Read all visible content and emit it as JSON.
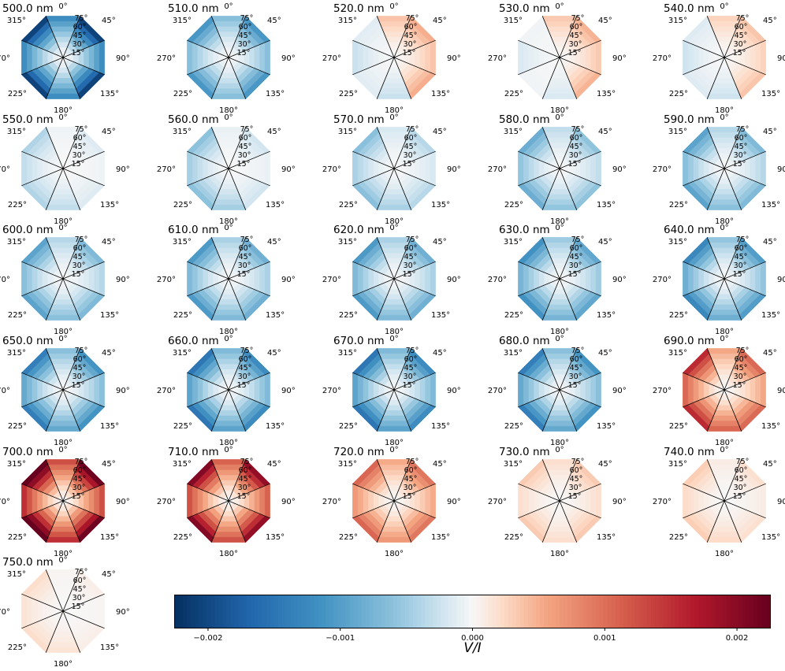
{
  "chart_data": {
    "type": "heatmap",
    "layout": "small-multiples-polar-octagon",
    "grid": "ranges, nm",
    "azimuth_labels": [
      "0°",
      "45°",
      "90°",
      "135°",
      "180°",
      "225°",
      "270°",
      "315°"
    ],
    "zenith_labels": [
      "15°",
      "30°",
      "45°",
      "60°",
      "75°"
    ],
    "zenith_values_deg": [
      15,
      30,
      45,
      60,
      75
    ],
    "colorbar": {
      "label": "V/I",
      "range": [
        -0.00225,
        0.00225
      ],
      "ticks": [
        -0.002,
        -0.001,
        0.0,
        0.001,
        0.002
      ],
      "tick_labels": [
        "−0.002",
        "−0.001",
        "0.000",
        "0.001",
        "0.002"
      ],
      "colormap": "RdBu_r"
    },
    "panels": [
      {
        "title": "500.0 nm",
        "edge": -0.0019,
        "skew": 0.0
      },
      {
        "title": "510.0 nm",
        "edge": -0.001,
        "skew": 0.0
      },
      {
        "title": "520.0 nm",
        "edge": 0.0003,
        "skew": -0.0005
      },
      {
        "title": "530.0 nm",
        "edge": 0.0003,
        "skew": -0.0004
      },
      {
        "title": "540.0 nm",
        "edge": 0.0002,
        "skew": -0.0004
      },
      {
        "title": "550.0 nm",
        "edge": -0.0002,
        "skew": -0.0002
      },
      {
        "title": "560.0 nm",
        "edge": -0.0003,
        "skew": -0.0003
      },
      {
        "title": "570.0 nm",
        "edge": -0.0004,
        "skew": -0.0002
      },
      {
        "title": "580.0 nm",
        "edge": -0.0006,
        "skew": -0.0002
      },
      {
        "title": "590.0 nm",
        "edge": -0.0007,
        "skew": -0.0002
      },
      {
        "title": "600.0 nm",
        "edge": -0.0007,
        "skew": -0.0002
      },
      {
        "title": "610.0 nm",
        "edge": -0.0008,
        "skew": -0.0002
      },
      {
        "title": "620.0 nm",
        "edge": -0.0008,
        "skew": -0.0002
      },
      {
        "title": "630.0 nm",
        "edge": -0.0009,
        "skew": -0.0002
      },
      {
        "title": "640.0 nm",
        "edge": -0.001,
        "skew": -0.0002
      },
      {
        "title": "650.0 nm",
        "edge": -0.0011,
        "skew": -0.0002
      },
      {
        "title": "660.0 nm",
        "edge": -0.0012,
        "skew": -0.0002
      },
      {
        "title": "670.0 nm",
        "edge": -0.0012,
        "skew": -0.0002
      },
      {
        "title": "680.0 nm",
        "edge": -0.0011,
        "skew": -0.0002
      },
      {
        "title": "690.0 nm",
        "edge": 0.0011,
        "skew": 0.0004
      },
      {
        "title": "700.0 nm",
        "edge": 0.0021,
        "skew": 0.0002
      },
      {
        "title": "710.0 nm",
        "edge": 0.0018,
        "skew": 0.0001
      },
      {
        "title": "720.0 nm",
        "edge": 0.0009,
        "skew": 0.0001
      },
      {
        "title": "730.0 nm",
        "edge": 0.0003,
        "skew": 0.0
      },
      {
        "title": "740.0 nm",
        "edge": 0.0002,
        "skew": 0.0001
      },
      {
        "title": "750.0 nm",
        "edge": 0.0001,
        "skew": 0.0001
      }
    ]
  }
}
